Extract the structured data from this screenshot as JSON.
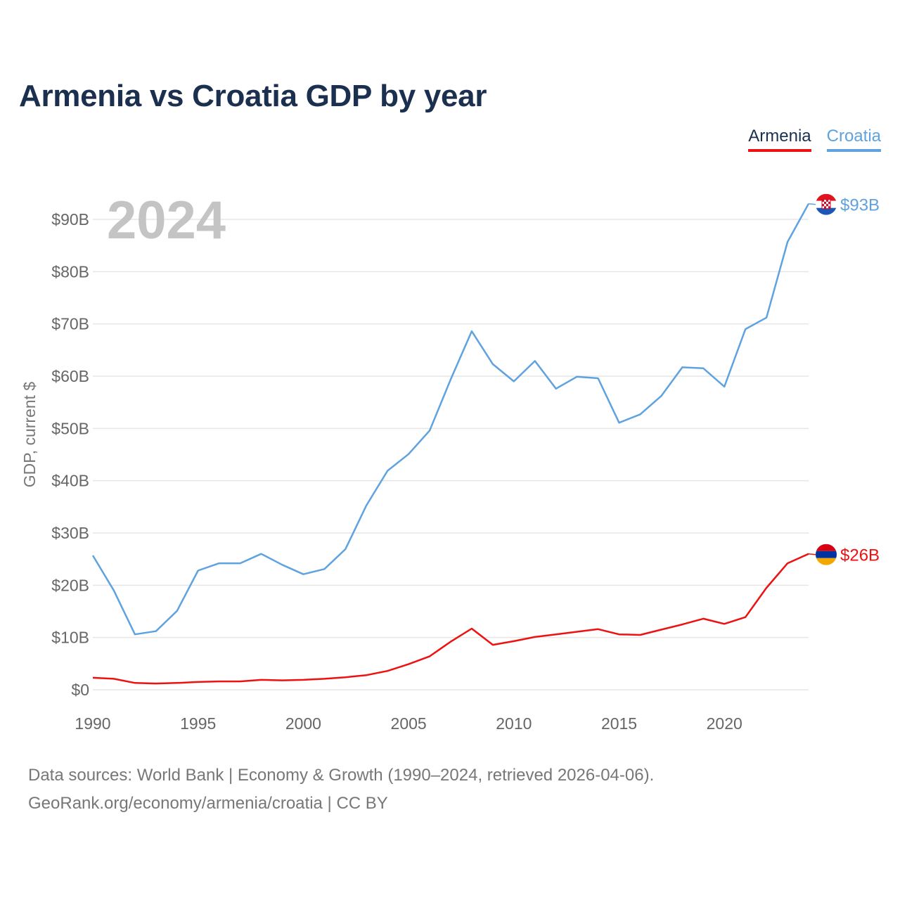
{
  "title": "Armenia vs Croatia GDP by year",
  "legend": {
    "armenia": "Armenia",
    "croatia": "Croatia"
  },
  "year_watermark": "2024",
  "source": {
    "line1": "Data sources: World Bank | Economy & Growth (1990–2024, retrieved 2026-04-06).",
    "line2": "GeoRank.org/economy/armenia/croatia | CC BY"
  },
  "colors": {
    "armenia": "#ee1111",
    "croatia": "#5fa2e0",
    "grid": "#e6e6e6",
    "title": "#1b2f4e"
  },
  "chart_data": {
    "type": "line",
    "title": "Armenia vs Croatia GDP by year",
    "xlabel": "",
    "ylabel": "GDP, current $",
    "xlim": [
      1990,
      2024
    ],
    "ylim": [
      0,
      90
    ],
    "x_ticks": [
      1990,
      1995,
      2000,
      2005,
      2010,
      2015,
      2020
    ],
    "y_ticks": [
      0,
      10,
      20,
      30,
      40,
      50,
      60,
      70,
      80,
      90
    ],
    "y_tick_labels": [
      "$0",
      "$10B",
      "$20B",
      "$30B",
      "$40B",
      "$50B",
      "$60B",
      "$70B",
      "$80B",
      "$90B"
    ],
    "grid": true,
    "legend_position": "top-right",
    "x": [
      1990,
      1991,
      1992,
      1993,
      1994,
      1995,
      1996,
      1997,
      1998,
      1999,
      2000,
      2001,
      2002,
      2003,
      2004,
      2005,
      2006,
      2007,
      2008,
      2009,
      2010,
      2011,
      2012,
      2013,
      2014,
      2015,
      2016,
      2017,
      2018,
      2019,
      2020,
      2021,
      2022,
      2023,
      2024
    ],
    "series": [
      {
        "name": "Armenia",
        "color": "#ee1111",
        "end_label": "$26B",
        "values": [
          2.3,
          2.1,
          1.3,
          1.2,
          1.3,
          1.5,
          1.6,
          1.6,
          1.9,
          1.8,
          1.9,
          2.1,
          2.4,
          2.8,
          3.6,
          4.9,
          6.4,
          9.2,
          11.7,
          8.6,
          9.3,
          10.1,
          10.6,
          11.1,
          11.6,
          10.6,
          10.5,
          11.5,
          12.5,
          13.6,
          12.6,
          13.9,
          19.5,
          24.2,
          26.0
        ]
      },
      {
        "name": "Croatia",
        "color": "#5fa2e0",
        "end_label": "$93B",
        "values": [
          25.7,
          19.0,
          10.6,
          11.2,
          15.1,
          22.8,
          24.2,
          24.2,
          26.0,
          23.9,
          22.1,
          23.1,
          26.9,
          35.3,
          41.9,
          45.1,
          49.6,
          59.4,
          68.6,
          62.3,
          59.0,
          62.9,
          57.6,
          59.9,
          59.6,
          51.1,
          52.7,
          56.2,
          61.7,
          61.5,
          58.0,
          69.0,
          71.2,
          85.7,
          93.0
        ]
      }
    ]
  }
}
